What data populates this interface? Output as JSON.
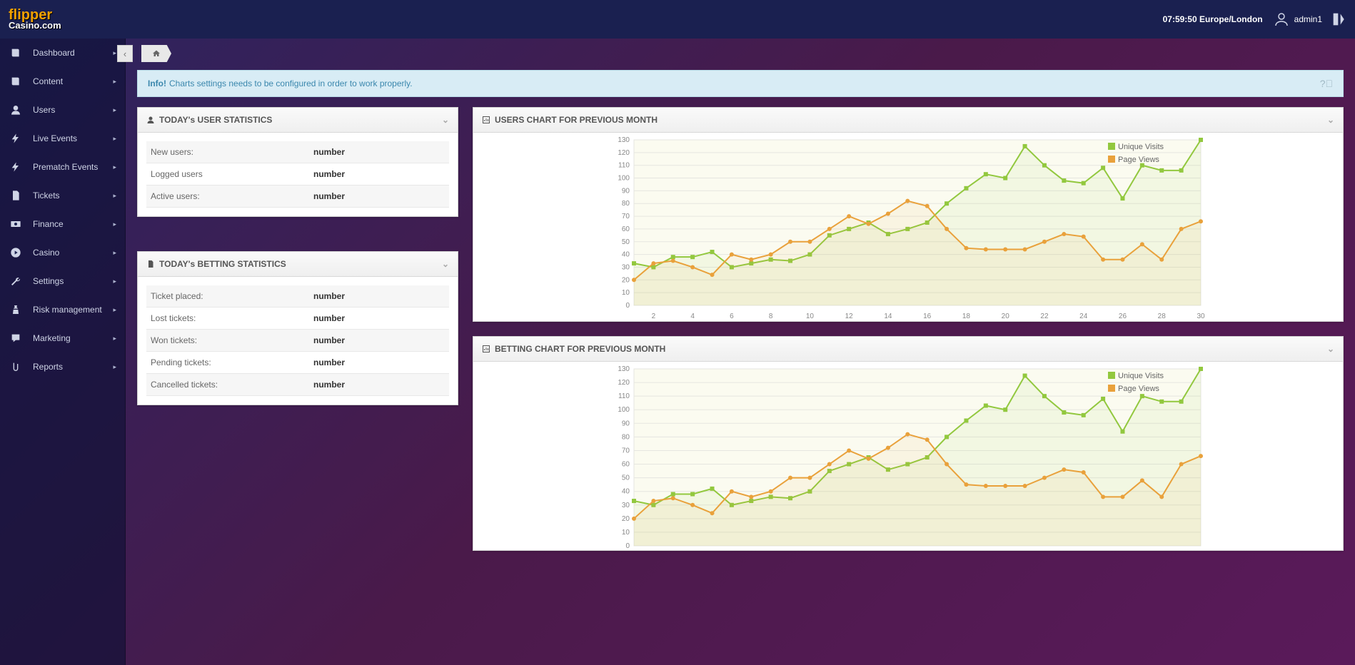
{
  "header": {
    "logo_top": "flipper",
    "logo_bottom": "Casino.com",
    "clock": "07:59:50 Europe/London",
    "username": "admin1"
  },
  "sidebar": {
    "items": [
      {
        "label": "Dashboard",
        "icon": "book"
      },
      {
        "label": "Content",
        "icon": "book"
      },
      {
        "label": "Users",
        "icon": "user"
      },
      {
        "label": "Live Events",
        "icon": "bolt"
      },
      {
        "label": "Prematch Events",
        "icon": "bolt"
      },
      {
        "label": "Tickets",
        "icon": "file"
      },
      {
        "label": "Finance",
        "icon": "money"
      },
      {
        "label": "Casino",
        "icon": "play"
      },
      {
        "label": "Settings",
        "icon": "wrench"
      },
      {
        "label": "Risk management",
        "icon": "chess"
      },
      {
        "label": "Marketing",
        "icon": "chat"
      },
      {
        "label": "Reports",
        "icon": "clip"
      }
    ]
  },
  "alert": {
    "prefix": "Info!",
    "text": "Charts settings needs to be configured in order to work properly."
  },
  "user_stats": {
    "title": "TODAY's USER STATISTICS",
    "rows": [
      {
        "label": "New users:",
        "value": "number"
      },
      {
        "label": "Logged users",
        "value": "number"
      },
      {
        "label": "Active users:",
        "value": "number"
      }
    ]
  },
  "bet_stats": {
    "title": "TODAY's BETTING STATISTICS",
    "rows": [
      {
        "label": "Ticket placed:",
        "value": "number"
      },
      {
        "label": "Lost tickets:",
        "value": "number"
      },
      {
        "label": "Won tickets:",
        "value": "number"
      },
      {
        "label": "Pending tickets:",
        "value": "number"
      },
      {
        "label": "Cancelled tickets:",
        "value": "number"
      }
    ]
  },
  "users_chart": {
    "title": "USERS CHART FOR PREVIOUS MONTH",
    "type": "line",
    "ylim": [
      0,
      130
    ],
    "ytick_step": 10,
    "xlim": [
      1,
      30
    ],
    "xtick_step": 2,
    "background_color": "#ffffff",
    "plot_bg": "#fbfbf0",
    "grid_color": "#e6e6e0",
    "axis_color": "#888888",
    "legend": [
      {
        "label": "Unique Visits",
        "color": "#92c83e"
      },
      {
        "label": "Page Views",
        "color": "#e9a13b"
      }
    ],
    "series": [
      {
        "name": "Unique Visits",
        "color": "#92c83e",
        "marker": "square",
        "data": [
          [
            1,
            33
          ],
          [
            2,
            30
          ],
          [
            3,
            38
          ],
          [
            4,
            38
          ],
          [
            5,
            42
          ],
          [
            6,
            30
          ],
          [
            7,
            33
          ],
          [
            8,
            36
          ],
          [
            9,
            35
          ],
          [
            10,
            40
          ],
          [
            11,
            55
          ],
          [
            12,
            60
          ],
          [
            13,
            65
          ],
          [
            14,
            56
          ],
          [
            15,
            60
          ],
          [
            16,
            65
          ],
          [
            17,
            80
          ],
          [
            18,
            92
          ],
          [
            19,
            103
          ],
          [
            20,
            100
          ],
          [
            21,
            125
          ],
          [
            22,
            110
          ],
          [
            23,
            98
          ],
          [
            24,
            96
          ],
          [
            25,
            108
          ],
          [
            26,
            84
          ],
          [
            27,
            110
          ],
          [
            28,
            106
          ],
          [
            29,
            106
          ],
          [
            30,
            130
          ]
        ]
      },
      {
        "name": "Page Views",
        "color": "#e9a13b",
        "marker": "circle",
        "data": [
          [
            1,
            20
          ],
          [
            2,
            33
          ],
          [
            3,
            35
          ],
          [
            4,
            30
          ],
          [
            5,
            24
          ],
          [
            6,
            40
          ],
          [
            7,
            36
          ],
          [
            8,
            40
          ],
          [
            9,
            50
          ],
          [
            10,
            50
          ],
          [
            11,
            60
          ],
          [
            12,
            70
          ],
          [
            13,
            64
          ],
          [
            14,
            72
          ],
          [
            15,
            82
          ],
          [
            16,
            78
          ],
          [
            17,
            60
          ],
          [
            18,
            45
          ],
          [
            19,
            44
          ],
          [
            20,
            44
          ],
          [
            21,
            44
          ],
          [
            22,
            50
          ],
          [
            23,
            56
          ],
          [
            24,
            54
          ],
          [
            25,
            36
          ],
          [
            26,
            36
          ],
          [
            27,
            48
          ],
          [
            28,
            36
          ],
          [
            29,
            60
          ],
          [
            30,
            66
          ]
        ]
      }
    ]
  },
  "betting_chart": {
    "title": "BETTING CHART FOR PREVIOUS MONTH",
    "type": "line",
    "ylim": [
      0,
      130
    ],
    "ytick_step": 10,
    "xlim": [
      1,
      30
    ],
    "xtick_step": 2,
    "background_color": "#ffffff",
    "plot_bg": "#fbfbf0",
    "grid_color": "#e6e6e0",
    "axis_color": "#888888",
    "legend": [
      {
        "label": "Unique Visits",
        "color": "#92c83e"
      },
      {
        "label": "Page Views",
        "color": "#e9a13b"
      }
    ],
    "series": [
      {
        "name": "Unique Visits",
        "color": "#92c83e",
        "marker": "square",
        "data": [
          [
            1,
            33
          ],
          [
            2,
            30
          ],
          [
            3,
            38
          ],
          [
            4,
            38
          ],
          [
            5,
            42
          ],
          [
            6,
            30
          ],
          [
            7,
            33
          ],
          [
            8,
            36
          ],
          [
            9,
            35
          ],
          [
            10,
            40
          ],
          [
            11,
            55
          ],
          [
            12,
            60
          ],
          [
            13,
            65
          ],
          [
            14,
            56
          ],
          [
            15,
            60
          ],
          [
            16,
            65
          ],
          [
            17,
            80
          ],
          [
            18,
            92
          ],
          [
            19,
            103
          ],
          [
            20,
            100
          ],
          [
            21,
            125
          ],
          [
            22,
            110
          ],
          [
            23,
            98
          ],
          [
            24,
            96
          ],
          [
            25,
            108
          ],
          [
            26,
            84
          ],
          [
            27,
            110
          ],
          [
            28,
            106
          ],
          [
            29,
            106
          ],
          [
            30,
            130
          ]
        ]
      },
      {
        "name": "Page Views",
        "color": "#e9a13b",
        "marker": "circle",
        "data": [
          [
            1,
            20
          ],
          [
            2,
            33
          ],
          [
            3,
            35
          ],
          [
            4,
            30
          ],
          [
            5,
            24
          ],
          [
            6,
            40
          ],
          [
            7,
            36
          ],
          [
            8,
            40
          ],
          [
            9,
            50
          ],
          [
            10,
            50
          ],
          [
            11,
            60
          ],
          [
            12,
            70
          ],
          [
            13,
            64
          ],
          [
            14,
            72
          ],
          [
            15,
            82
          ],
          [
            16,
            78
          ],
          [
            17,
            60
          ],
          [
            18,
            45
          ],
          [
            19,
            44
          ],
          [
            20,
            44
          ],
          [
            21,
            44
          ],
          [
            22,
            50
          ],
          [
            23,
            56
          ],
          [
            24,
            54
          ],
          [
            25,
            36
          ],
          [
            26,
            36
          ],
          [
            27,
            48
          ],
          [
            28,
            36
          ],
          [
            29,
            60
          ],
          [
            30,
            66
          ]
        ]
      }
    ]
  }
}
